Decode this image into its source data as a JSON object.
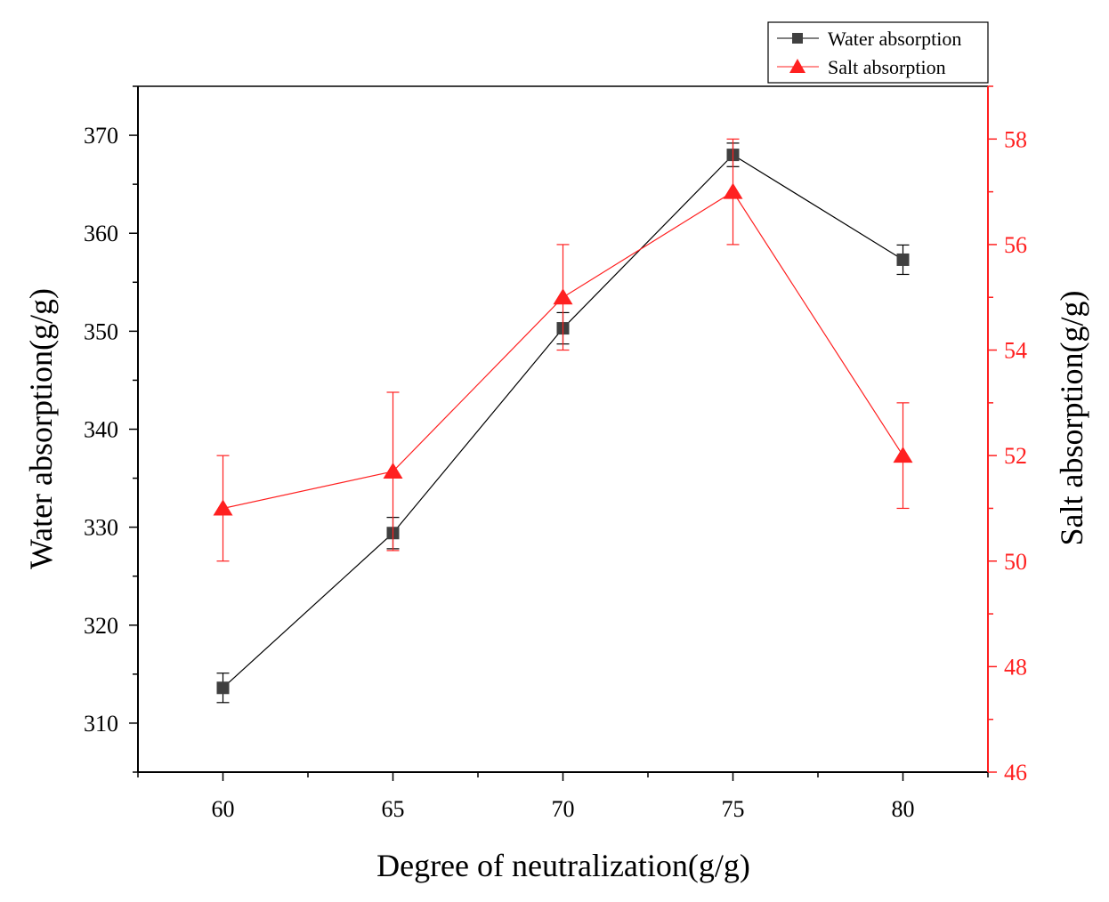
{
  "chart_data": {
    "type": "line",
    "title": "",
    "xlabel": "Degree of neutralization(g/g)",
    "ylabel": "Water absorption(g/g)",
    "y2label": "Salt absorption(g/g)",
    "x": [
      60,
      65,
      70,
      75,
      80
    ],
    "x_ticks": [
      "60",
      "65",
      "70",
      "75",
      "80"
    ],
    "xlim": [
      57.5,
      82.5
    ],
    "ylim": [
      305,
      375
    ],
    "y_ticks": [
      "310",
      "320",
      "330",
      "340",
      "350",
      "360",
      "370"
    ],
    "y2lim": [
      46,
      59
    ],
    "y2_ticks": [
      "46",
      "48",
      "50",
      "52",
      "54",
      "56",
      "58"
    ],
    "legend_position": "top-right",
    "series": [
      {
        "name": "Water absorption",
        "axis": "left",
        "color": "#000000",
        "marker": "square",
        "marker_color": "#404040",
        "values": [
          313.6,
          329.4,
          350.3,
          368.0,
          357.3
        ],
        "errors": [
          1.5,
          1.6,
          1.6,
          1.2,
          1.5
        ]
      },
      {
        "name": "Salt absorption",
        "axis": "right",
        "color": "#ff2020",
        "marker": "triangle",
        "values": [
          51.0,
          51.7,
          55.0,
          57.0,
          52.0
        ],
        "errors": [
          1.0,
          1.5,
          1.0,
          1.0,
          1.0
        ]
      }
    ]
  }
}
